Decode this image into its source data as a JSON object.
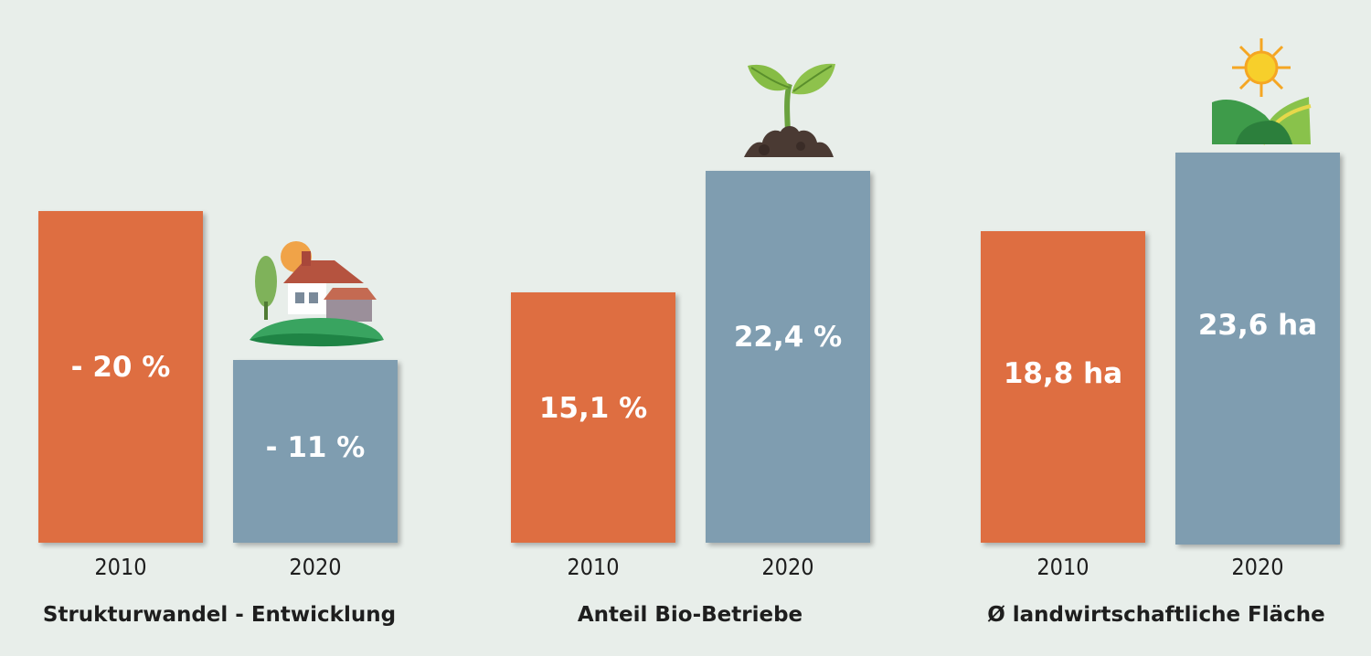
{
  "colors": {
    "background": "#e8eeea",
    "bar_2010": "#de6e41",
    "bar_2020": "#7f9db0"
  },
  "chart_data": {
    "type": "bar",
    "groups": [
      {
        "label": "Strukturwandel - Entwicklung",
        "icon": "farmhouse-icon",
        "bars": [
          {
            "year": "2010",
            "value": -20,
            "unit": "%",
            "label": "- 20 %"
          },
          {
            "year": "2020",
            "value": -11,
            "unit": "%",
            "label": "- 11 %"
          }
        ]
      },
      {
        "label": "Anteil Bio-Betriebe",
        "icon": "seedling-icon",
        "bars": [
          {
            "year": "2010",
            "value": 15.1,
            "unit": "%",
            "label": "15,1 %"
          },
          {
            "year": "2020",
            "value": 22.4,
            "unit": "%",
            "label": "22,4 %"
          }
        ]
      },
      {
        "label": "Ø landwirtschaftliche Fläche",
        "icon": "sun-fields-icon",
        "bars": [
          {
            "year": "2010",
            "value": 18.8,
            "unit": "ha",
            "label": "18,8 ha"
          },
          {
            "year": "2020",
            "value": 23.6,
            "unit": "ha",
            "label": "23,6 ha"
          }
        ]
      }
    ]
  }
}
